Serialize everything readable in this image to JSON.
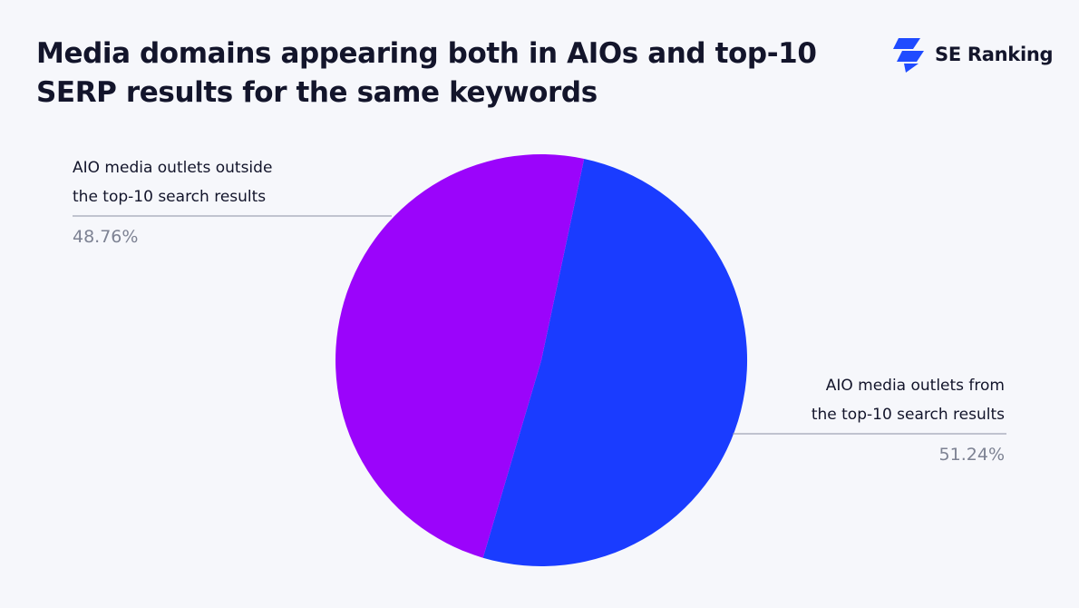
{
  "title": "Media domains appearing both in AIOs and top-10 SERP results for the same keywords",
  "brand": {
    "name": "SE Ranking",
    "color": "#1f4bff"
  },
  "chart_data": {
    "type": "pie",
    "title": "Media domains appearing both in AIOs and top-10 SERP results for the same keywords",
    "slices": [
      {
        "name": "AIO media outlets from the top-10 search results",
        "label_lines": [
          "AIO media outlets from",
          "the top-10 search results"
        ],
        "value": 51.24,
        "value_label": "51.24%",
        "color": "#1a3cff",
        "label_side": "right"
      },
      {
        "name": "AIO media outlets outside the top-10 search results",
        "label_lines": [
          "AIO media outlets outside",
          "the top-10 search results"
        ],
        "value": 48.76,
        "value_label": "48.76%",
        "color": "#9b04fb",
        "label_side": "left"
      }
    ],
    "start_angle_deg": 12
  }
}
